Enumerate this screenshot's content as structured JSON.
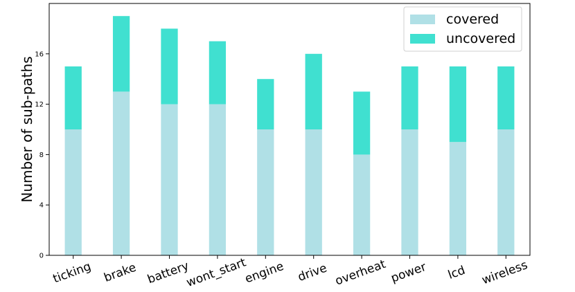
{
  "chart_data": {
    "type": "bar",
    "stacked": true,
    "categories": [
      "ticking",
      "brake",
      "battery",
      "wont_start",
      "engine",
      "drive",
      "overheat",
      "power",
      "lcd",
      "wireless"
    ],
    "series": [
      {
        "name": "covered",
        "color": "#b0e0e6",
        "values": [
          10,
          13,
          12,
          12,
          10,
          10,
          8,
          10,
          9,
          10
        ]
      },
      {
        "name": "uncovered",
        "color": "#40e0d0",
        "values": [
          5,
          6,
          6,
          5,
          4,
          6,
          5,
          5,
          6,
          5
        ]
      }
    ],
    "ylabel": "Number of sub-paths",
    "xlabel": "",
    "ylim": [
      0,
      20
    ],
    "yticks": [
      0,
      4,
      8,
      12,
      16
    ],
    "grid": false,
    "legend_position": "top-right"
  }
}
